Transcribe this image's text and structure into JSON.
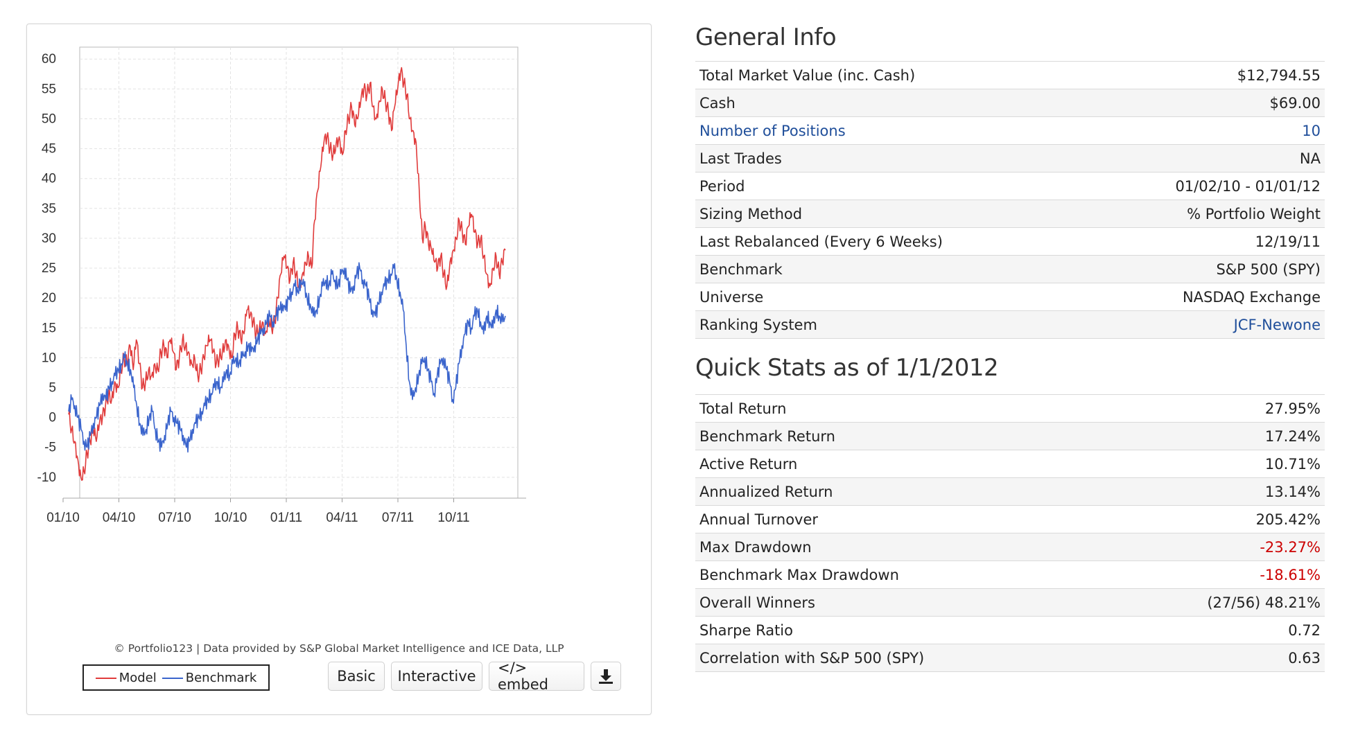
{
  "chart": {
    "type": "line",
    "x_ticks": [
      "01/10",
      "04/10",
      "07/10",
      "10/10",
      "01/11",
      "04/11",
      "07/11",
      "10/11"
    ],
    "y_ticks": [
      60,
      55,
      50,
      45,
      40,
      35,
      30,
      25,
      20,
      15,
      10,
      5,
      0,
      -5,
      -10
    ],
    "ylim": [
      -13.5,
      62
    ],
    "grid": true,
    "legend_position": "bottom-left",
    "series": [
      {
        "name": "Model",
        "color": "#e03b3b",
        "values": [
          0.5,
          -2,
          -4,
          -7,
          -10,
          -9,
          -6,
          -4,
          -2,
          -4,
          -1,
          0,
          2,
          4,
          3,
          6,
          5,
          8,
          10,
          9,
          12,
          8,
          13,
          9,
          5,
          6,
          8,
          7,
          9,
          8,
          11,
          12,
          10,
          13,
          11,
          8,
          10,
          13,
          12,
          11,
          9,
          10,
          7,
          8,
          10,
          12,
          13,
          11,
          9,
          10,
          11,
          13,
          12,
          10,
          14,
          15,
          13,
          14,
          18,
          17,
          16,
          14,
          15,
          16,
          14,
          17,
          15,
          16,
          20,
          24,
          27,
          25,
          23,
          26,
          24,
          22,
          24,
          26,
          27,
          25,
          33,
          38,
          42,
          46,
          47,
          45,
          44,
          46,
          47,
          44,
          48,
          50,
          52,
          49,
          50,
          53,
          55,
          54,
          56,
          52,
          50,
          53,
          55,
          53,
          51,
          48,
          52,
          55,
          58,
          56,
          54,
          50,
          48,
          46,
          38,
          30,
          32,
          29,
          28,
          26,
          25,
          27,
          24,
          22,
          26,
          28,
          30,
          33,
          31,
          29,
          32,
          34,
          31,
          29,
          30,
          27,
          24,
          22,
          25,
          27,
          24,
          26,
          28
        ]
      },
      {
        "name": "Benchmark",
        "color": "#3a64cc",
        "values": [
          1,
          3,
          2,
          0,
          -2,
          -4,
          -5,
          -3,
          -1,
          0,
          2,
          4,
          3,
          5,
          6,
          7,
          8,
          9,
          10,
          9,
          8,
          5,
          2,
          -1,
          -3,
          -2,
          0,
          1,
          -2,
          -4,
          -5,
          -3,
          -1,
          1,
          0,
          -1,
          -2,
          -3,
          -5,
          -4,
          -2,
          -1,
          0,
          1,
          2,
          3,
          4,
          5,
          6,
          5,
          6,
          8,
          7,
          9,
          10,
          9,
          10,
          11,
          12,
          11,
          12,
          13,
          14,
          15,
          16,
          17,
          16,
          17,
          18,
          19,
          18,
          20,
          21,
          22,
          21,
          23,
          22,
          20,
          19,
          17,
          18,
          20,
          22,
          23,
          22,
          24,
          23,
          22,
          24,
          25,
          23,
          21,
          22,
          24,
          25,
          23,
          22,
          20,
          18,
          17,
          19,
          21,
          22,
          23,
          24,
          25,
          23,
          21,
          18,
          12,
          6,
          3,
          5,
          7,
          9,
          10,
          8,
          6,
          4,
          7,
          9,
          10,
          8,
          6,
          3,
          5,
          9,
          12,
          14,
          16,
          15,
          17,
          18,
          16,
          14,
          17,
          16,
          15,
          18,
          17,
          16,
          17
        ]
      }
    ]
  },
  "credit": "© Portfolio123 | Data provided by S&P Global Market Intelligence and ICE Data, LLP",
  "legend": {
    "model": "Model",
    "benchmark": "Benchmark"
  },
  "toolbar": {
    "basic": "Basic",
    "interactive": "Interactive",
    "embed": "</> embed",
    "download_icon": "download-icon"
  },
  "general_info": {
    "title": "General Info",
    "rows": [
      {
        "label": "Total Market Value (inc. Cash)",
        "value": "$12,794.55"
      },
      {
        "label": "Cash",
        "value": "$69.00"
      },
      {
        "label": "Number of Positions",
        "value": "10",
        "link": true
      },
      {
        "label": "Last Trades",
        "value": "NA"
      },
      {
        "label": "Period",
        "value": "01/02/10 - 01/01/12"
      },
      {
        "label": "Sizing Method",
        "value": "% Portfolio Weight"
      },
      {
        "label": "Last Rebalanced (Every 6 Weeks)",
        "value": "12/19/11"
      },
      {
        "label": "Benchmark",
        "value": "S&P 500 (SPY)"
      },
      {
        "label": "Universe",
        "value": "NASDAQ Exchange"
      },
      {
        "label": "Ranking System",
        "value": "JCF-Newone",
        "value_link": true
      }
    ]
  },
  "quick_stats": {
    "title": "Quick Stats as of 1/1/2012",
    "rows": [
      {
        "label": "Total Return",
        "value": "27.95%"
      },
      {
        "label": "Benchmark Return",
        "value": "17.24%"
      },
      {
        "label": "Active Return",
        "value": "10.71%"
      },
      {
        "label": "Annualized Return",
        "value": "13.14%"
      },
      {
        "label": "Annual Turnover",
        "value": "205.42%"
      },
      {
        "label": "Max Drawdown",
        "value": "-23.27%",
        "negative": true
      },
      {
        "label": "Benchmark Max Drawdown",
        "value": "-18.61%",
        "negative": true
      },
      {
        "label": "Overall Winners",
        "value": "(27/56) 48.21%"
      },
      {
        "label": "Sharpe Ratio",
        "value": "0.72"
      },
      {
        "label": "Correlation with S&P 500 (SPY)",
        "value": "0.63"
      }
    ]
  },
  "colors": {
    "link": "#1f4e9a",
    "negative": "#cc0000"
  }
}
